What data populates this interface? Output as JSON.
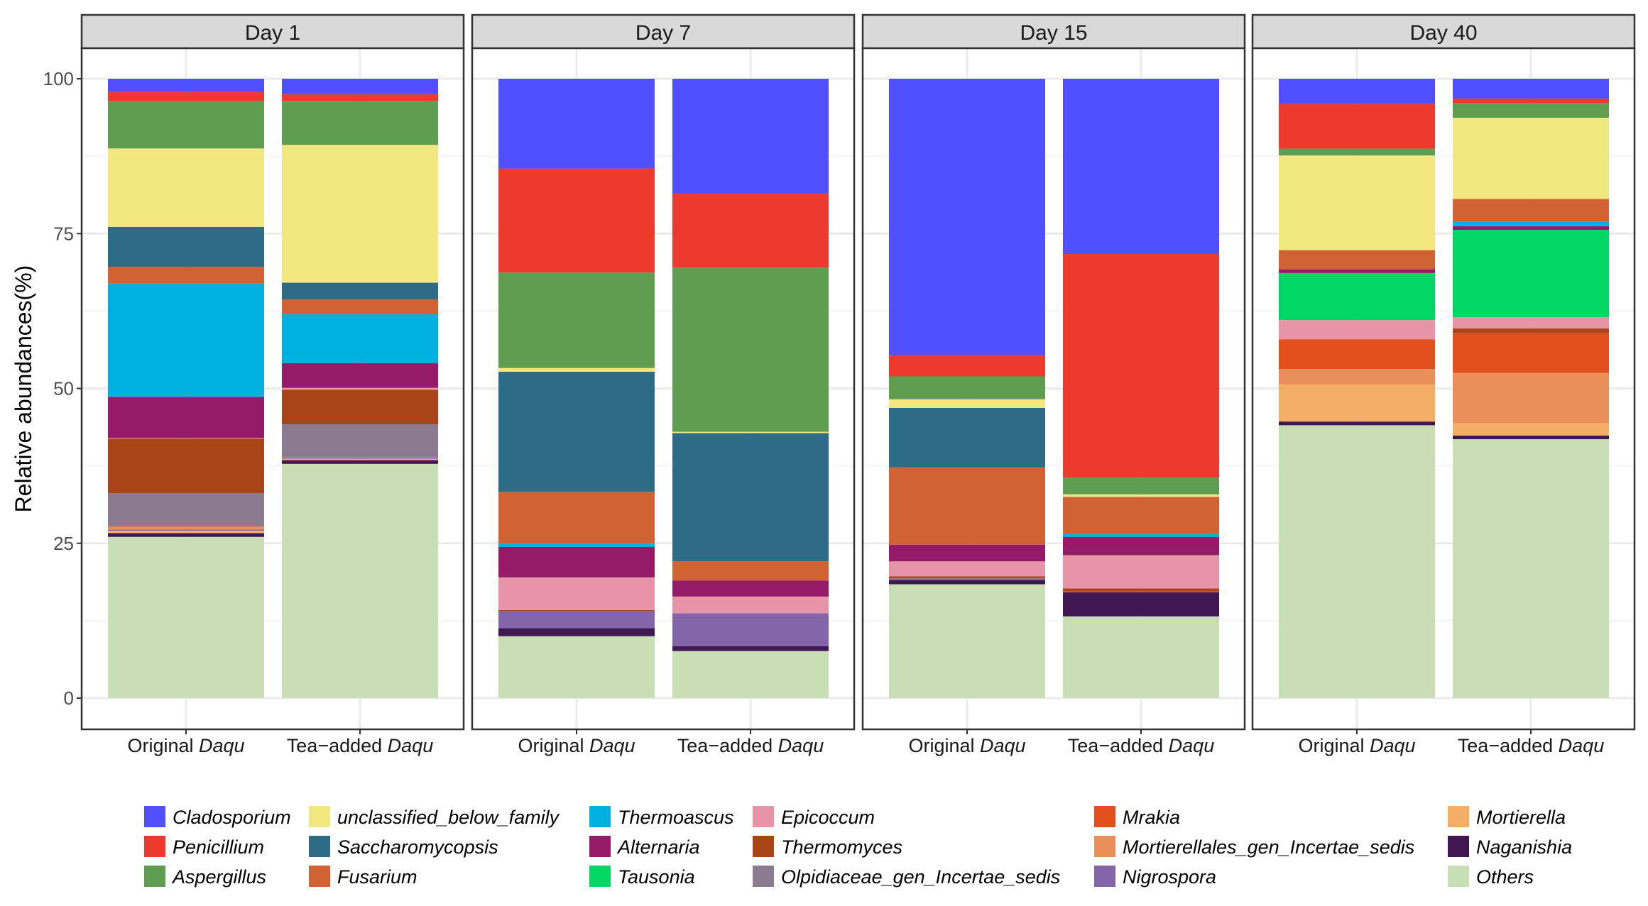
{
  "chart_data": {
    "type": "bar",
    "stacked": true,
    "ylabel": "Relative abundances(%)",
    "xlabel": "",
    "ylim": [
      0,
      100
    ],
    "yticks": [
      "0",
      "25",
      "50",
      "75",
      "100"
    ],
    "grid": true,
    "legend_position": "bottom",
    "genera": [
      {
        "name": "Cladosporium",
        "color": "#5050FF"
      },
      {
        "name": "Penicillium",
        "color": "#EE3A2E"
      },
      {
        "name": "Aspergillus",
        "color": "#5F9D50"
      },
      {
        "name": "unclassified_below_family",
        "color": "#F2E880"
      },
      {
        "name": "Saccharomycopsis",
        "color": "#2D6B87"
      },
      {
        "name": "Fusarium",
        "color": "#D16233"
      },
      {
        "name": "Thermoascus",
        "color": "#00B1DF"
      },
      {
        "name": "Alternaria",
        "color": "#951A67"
      },
      {
        "name": "Tausonia",
        "color": "#00D765"
      },
      {
        "name": "Epicoccum",
        "color": "#E894A8"
      },
      {
        "name": "Thermomyces",
        "color": "#A84418"
      },
      {
        "name": "Olpidiaceae_gen_Incertae_sedis",
        "color": "#8A7B8E"
      },
      {
        "name": "Mrakia",
        "color": "#E2501E"
      },
      {
        "name": "Mortierellales_gen_Incertae_sedis",
        "color": "#EA8F5A"
      },
      {
        "name": "Nigrospora",
        "color": "#8366AA"
      },
      {
        "name": "Mortierella",
        "color": "#F4AE65"
      },
      {
        "name": "Naganishia",
        "color": "#411751"
      },
      {
        "name": "Others",
        "color": "#C8DFB5"
      }
    ],
    "panels": [
      {
        "title": "Day 1",
        "samples": [
          {
            "label": "Original",
            "label_italic": "Daqu",
            "values": [
              2.1,
              1.5,
              7.6,
              12.6,
              6.4,
              2.7,
              18.2,
              6.6,
              0,
              0.1,
              8.8,
              5.3,
              0.1,
              0.4,
              0.2,
              0.4,
              0.6,
              25.9
            ]
          },
          {
            "label": "Tea−added",
            "label_italic": "Daqu",
            "values": [
              2.5,
              1.1,
              7.1,
              22.3,
              2.7,
              2.4,
              7.9,
              4.0,
              0,
              0.3,
              5.6,
              5.4,
              0,
              0.1,
              0.1,
              0.2,
              0.6,
              37.9
            ]
          }
        ]
      },
      {
        "title": "Day 7",
        "samples": [
          {
            "label": "Original",
            "label_italic": "Daqu",
            "values": [
              14.5,
              16.8,
              15.4,
              0.6,
              19.4,
              8.4,
              0.5,
              4.9,
              0,
              5.3,
              0.2,
              0,
              0,
              0,
              2.7,
              0,
              1.3,
              10.0
            ]
          },
          {
            "label": "Tea−added",
            "label_italic": "Daqu",
            "values": [
              18.5,
              12.0,
              26.5,
              0.2,
              20.7,
              3.1,
              0,
              2.6,
              0,
              2.7,
              0,
              0,
              0,
              0,
              5.3,
              0,
              0.8,
              7.6
            ]
          }
        ]
      },
      {
        "title": "Day 15",
        "samples": [
          {
            "label": "Original",
            "label_italic": "Daqu",
            "values": [
              44.7,
              3.4,
              3.7,
              1.4,
              9.6,
              12.5,
              0,
              2.7,
              0,
              2.4,
              0.3,
              0.2,
              0,
              0,
              0.1,
              0,
              0.7,
              18.4
            ]
          },
          {
            "label": "Tea−added",
            "label_italic": "Daqu",
            "values": [
              28.3,
              36.1,
              2.7,
              0.4,
              0,
              6.0,
              0.5,
              2.9,
              0.1,
              5.3,
              0.4,
              0,
              0.2,
              0,
              0,
              0,
              3.9,
              13.2
            ]
          }
        ]
      },
      {
        "title": "Day 40",
        "samples": [
          {
            "label": "Original",
            "label_italic": "Daqu",
            "values": [
              4.1,
              7.2,
              1.1,
              15.3,
              0,
              3.1,
              0,
              0.6,
              7.6,
              3.1,
              0,
              0,
              4.8,
              2.5,
              0,
              6.0,
              0.6,
              44.1
            ]
          },
          {
            "label": "Tea−added",
            "label_italic": "Daqu",
            "values": [
              3.2,
              0.7,
              2.4,
              13.1,
              0,
              3.7,
              0.7,
              0.6,
              14.1,
              1.8,
              0.8,
              0,
              6.4,
              8.1,
              0,
              2.0,
              0.6,
              41.8
            ]
          }
        ]
      }
    ]
  }
}
